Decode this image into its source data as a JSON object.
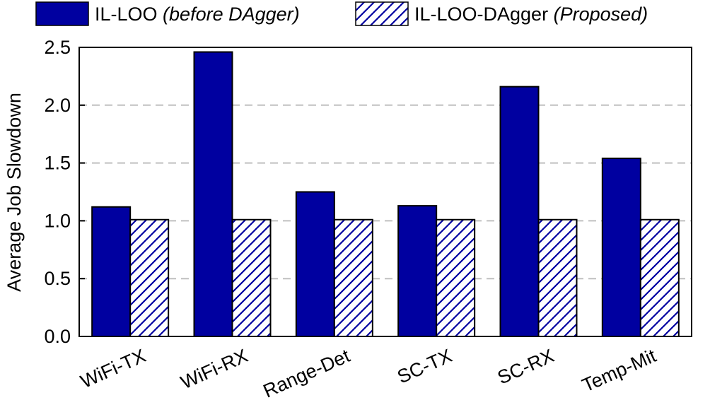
{
  "chart_data": {
    "type": "bar",
    "categories": [
      "WiFi-TX",
      "WiFi-RX",
      "Range-Det",
      "SC-TX",
      "SC-RX",
      "Temp-Mit"
    ],
    "series": [
      {
        "name": "IL-LOO",
        "name_suffix": "(before DAgger)",
        "values": [
          1.12,
          2.46,
          1.25,
          1.13,
          2.16,
          1.54
        ],
        "color": "#0000a0",
        "pattern": "solid"
      },
      {
        "name": "IL-LOO-DAgger",
        "name_suffix": "(Proposed)",
        "values": [
          1.01,
          1.01,
          1.01,
          1.01,
          1.01,
          1.01
        ],
        "color": "#0000a0",
        "pattern": "hatch"
      }
    ],
    "xlabel": "",
    "ylabel": "Average Job Slowdown",
    "ylim": [
      0,
      2.5
    ],
    "yticks": [
      "0.0",
      "0.5",
      "1.0",
      "1.5",
      "2.0",
      "2.5"
    ],
    "grid": "horizontal-dashed",
    "legend_position": "top"
  }
}
